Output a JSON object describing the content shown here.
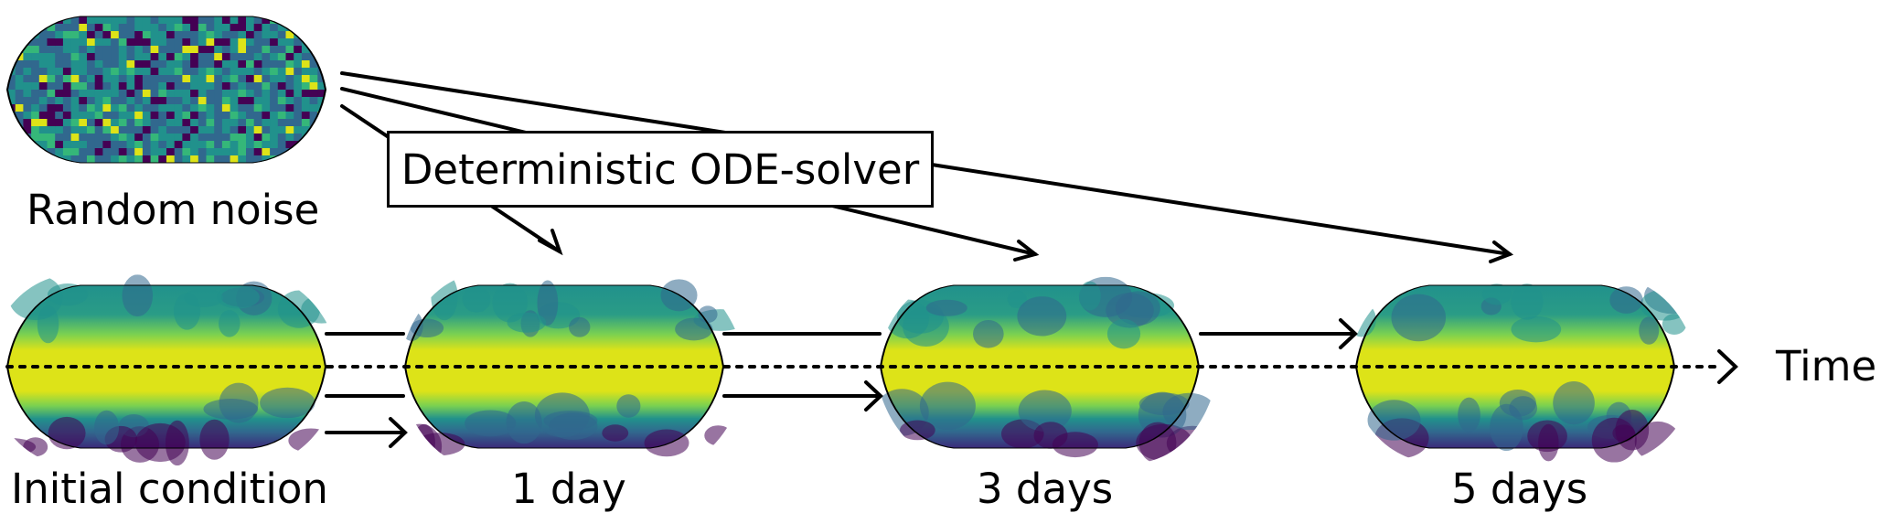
{
  "labels": {
    "noise": "Random noise",
    "initial": "Initial condition",
    "day1": "1 day",
    "day3": "3 days",
    "day5": "5 days",
    "time": "Time",
    "solver": "Deterministic ODE-solver"
  },
  "colors": {
    "viridis_dark": "#440154",
    "viridis_blue": "#31688e",
    "viridis_teal": "#21918c",
    "viridis_green": "#35b779",
    "viridis_yellow": "#dde318",
    "line": "#000000"
  }
}
